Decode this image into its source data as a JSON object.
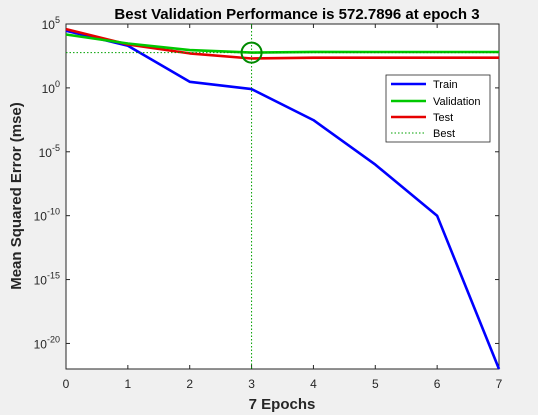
{
  "chart_data": {
    "type": "line",
    "title": "Best Validation Performance is 572.7896 at epoch 3",
    "xlabel": "7 Epochs",
    "ylabel": "Mean Squared Error  (mse)",
    "xlim": [
      0,
      7
    ],
    "x_ticks": [
      "0",
      "1",
      "2",
      "3",
      "4",
      "5",
      "6",
      "7"
    ],
    "y_scale": "log",
    "y_tick_exponents": [
      -20,
      -15,
      -10,
      -5,
      0,
      5
    ],
    "y_tick_base": "10",
    "y_tick_labels": [
      "10-20",
      "10-15",
      "10-10",
      "10-5",
      "100",
      "105"
    ],
    "ylim": [
      1e-22,
      100000.0
    ],
    "x": [
      0,
      1,
      2,
      3,
      4,
      5,
      6,
      7
    ],
    "series": [
      {
        "name": "Train",
        "color": "#0000ff",
        "values": [
          30000,
          2000,
          3,
          0.8,
          0.003,
          1e-06,
          1e-10,
          1e-22
        ]
      },
      {
        "name": "Validation",
        "color": "#00c800",
        "values": [
          15000,
          3000,
          900,
          572.7896,
          650,
          640,
          640,
          640
        ]
      },
      {
        "name": "Test",
        "color": "#e60000",
        "values": [
          40000,
          2500,
          500,
          200,
          230,
          230,
          230,
          230
        ]
      }
    ],
    "best": {
      "name": "Best",
      "epoch": 3,
      "value": 572.7896,
      "color": "#00a000"
    },
    "grid": false,
    "legend_position": "top-right"
  }
}
